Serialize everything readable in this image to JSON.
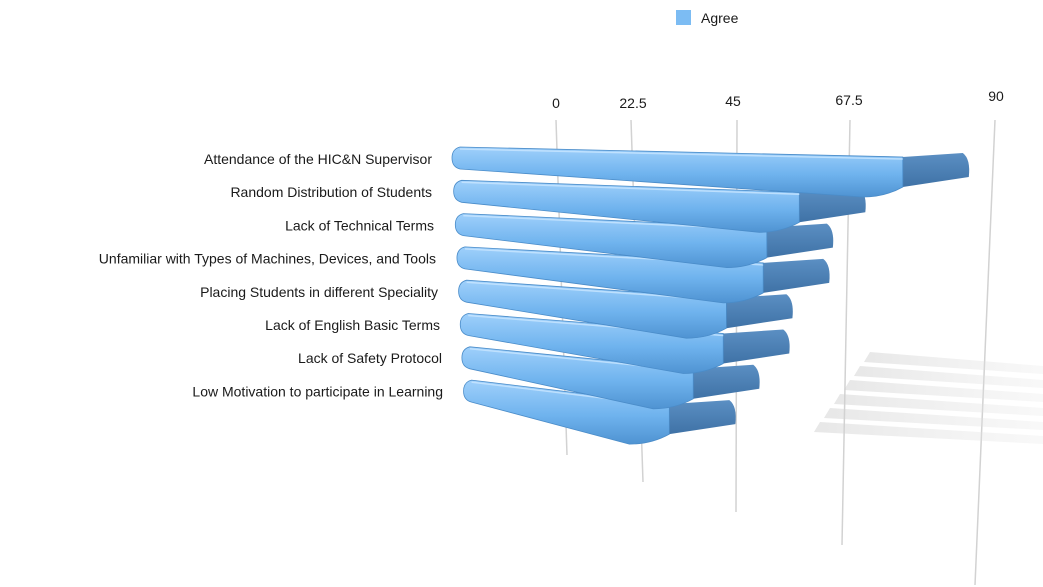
{
  "chart_data": {
    "type": "bar",
    "orientation": "horizontal",
    "style": "3d-perspective",
    "legend": {
      "position": "top",
      "entries": [
        {
          "label": "Agree",
          "color": "#6fb3ee"
        }
      ]
    },
    "series": [
      {
        "name": "Agree",
        "color": "#6fb3ee",
        "values": [
          88,
          71,
          66,
          66,
          60,
          60,
          55,
          51
        ]
      }
    ],
    "categories": [
      "Attendance of the HIC&N Supervisor",
      "Random Distribution of Students",
      "Lack of Technical Terms",
      "Unfamiliar with Types of Machines, Devices, and Tools",
      "Placing Students in different Speciality",
      "Lack of English Basic Terms",
      "Lack of Safety Protocol",
      "Low Motivation to participate in Learning"
    ],
    "x_ticks": [
      "0",
      "22.5",
      "45",
      "67.5",
      "90"
    ],
    "xlim": [
      0,
      90
    ],
    "grid": true,
    "title": "",
    "xlabel": "",
    "ylabel": ""
  }
}
